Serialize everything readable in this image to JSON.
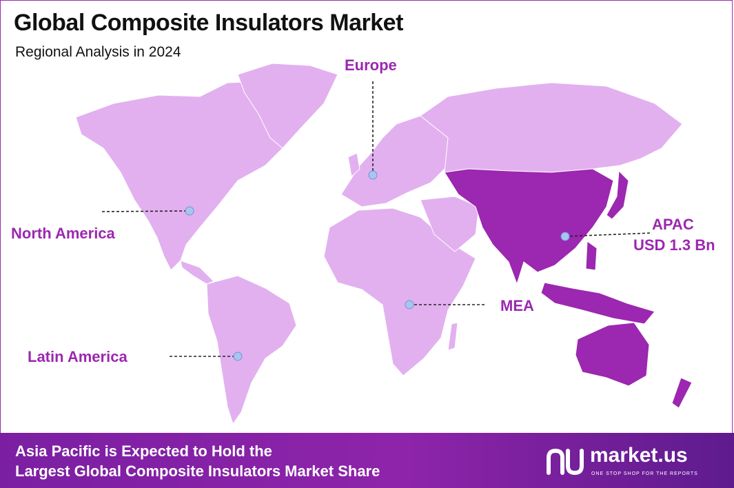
{
  "header": {
    "title": "Global Composite Insulators Market",
    "subtitle": "Regional Analysis in 2024"
  },
  "regions": {
    "europe": {
      "label": "Europe"
    },
    "north_america": {
      "label": "North America"
    },
    "apac": {
      "label": "APAC",
      "value": "USD 1.3 Bn",
      "highlighted": true
    },
    "mea": {
      "label": "MEA"
    },
    "latin_america": {
      "label": "Latin America"
    }
  },
  "footer": {
    "line1": "Asia Pacific is Expected to Hold the",
    "line2": "Largest Global Composite Insulators Market Share"
  },
  "brand": {
    "name": "market.us",
    "tagline": "ONE STOP SHOP FOR THE REPORTS"
  },
  "colors": {
    "land": "#e2b0ef",
    "highlight": "#9c27b0",
    "label": "#9c27b0",
    "marker": "#a9c4ee",
    "footer": "#8e24aa"
  }
}
